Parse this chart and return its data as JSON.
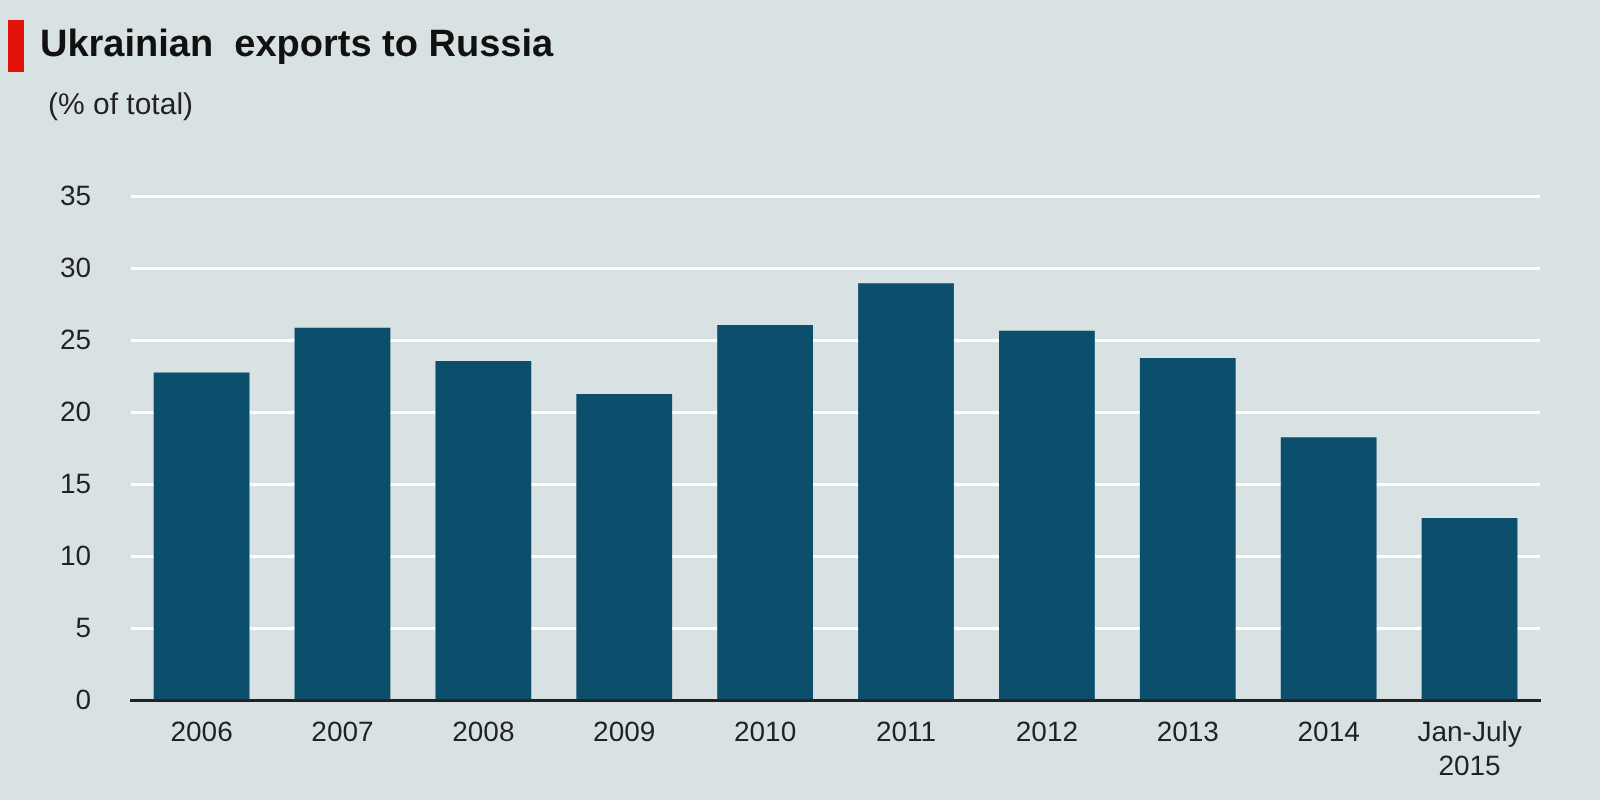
{
  "chart_data": {
    "type": "bar",
    "title": "Ukrainian  exports to Russia",
    "ylabel": "(% of total)",
    "categories": [
      "2006",
      "2007",
      "2008",
      "2009",
      "2010",
      "2011",
      "2012",
      "2013",
      "2014",
      "Jan-July 2015"
    ],
    "values": [
      22.8,
      25.9,
      23.6,
      21.3,
      26.1,
      29.0,
      25.7,
      23.8,
      18.3,
      12.7
    ],
    "color": "#0b4f6c",
    "ylim": [
      0,
      35
    ],
    "yticks": [
      0,
      5,
      10,
      15,
      20,
      25,
      30,
      35
    ],
    "grid": "y",
    "legend": false
  }
}
